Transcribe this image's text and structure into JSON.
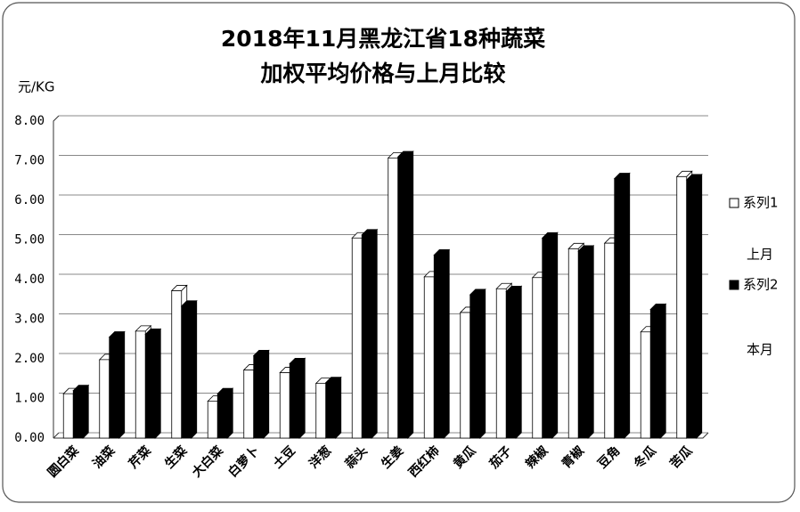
{
  "chart_data": {
    "type": "bar3d",
    "title": [
      "2018年11月黑龙江省18种蔬菜",
      "加权平均价格与上月比较"
    ],
    "y_axis_label": "元/KG",
    "categories": [
      "圆白菜",
      "油菜",
      "芹菜",
      "生菜",
      "大白菜",
      "白萝卜",
      "土豆",
      "洋葱",
      "蒜头",
      "生姜",
      "西红柿",
      "黄瓜",
      "茄子",
      "辣椒",
      "青椒",
      "豆角",
      "冬瓜",
      "苦瓜"
    ],
    "series": [
      {
        "name": "系列1",
        "color": "#ffffff",
        "values": [
          1.12,
          1.98,
          2.7,
          3.72,
          0.93,
          1.72,
          1.65,
          1.38,
          5.05,
          7.07,
          4.07,
          3.17,
          3.77,
          4.05,
          4.78,
          4.92,
          2.68,
          6.6
        ]
      },
      {
        "name": "系列2",
        "color": "#000000",
        "values": [
          1.2,
          2.55,
          2.62,
          3.33,
          1.12,
          2.08,
          1.88,
          1.4,
          5.13,
          7.1,
          4.62,
          3.62,
          3.7,
          5.05,
          4.72,
          6.55,
          3.25,
          6.52
        ]
      }
    ],
    "legend_notes": [
      "上月",
      "本月"
    ],
    "legend": "right",
    "ylim": [
      0,
      8
    ],
    "yticks": [
      {
        "value": 0,
        "label": "0.00"
      },
      {
        "value": 1,
        "label": "1.00"
      },
      {
        "value": 2,
        "label": "2.00"
      },
      {
        "value": 3,
        "label": "3.00"
      },
      {
        "value": 4,
        "label": "4.00"
      },
      {
        "value": 5,
        "label": "5.00"
      },
      {
        "value": 6,
        "label": "6.00"
      },
      {
        "value": 7,
        "label": "7.00"
      },
      {
        "value": 8,
        "label": "8.00"
      }
    ],
    "grid": true
  }
}
